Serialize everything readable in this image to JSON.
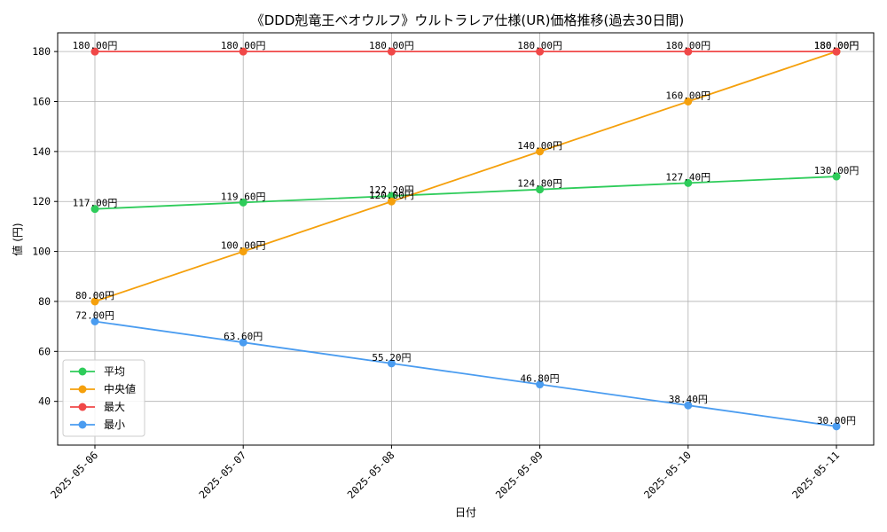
{
  "chart_data": {
    "type": "line",
    "title": "《DDD剋竜王ベオウルフ》ウルトラレア仕様(UR)価格推移(過去30日間)",
    "xlabel": "日付",
    "ylabel": "値 (円)",
    "categories": [
      "2025-05-06",
      "2025-05-07",
      "2025-05-08",
      "2025-05-09",
      "2025-05-10",
      "2025-05-11"
    ],
    "ylim": [
      22.5,
      187.5
    ],
    "yticks": [
      40,
      60,
      80,
      100,
      120,
      140,
      160,
      180
    ],
    "grid": true,
    "legend_position": "lower-left",
    "value_suffix": "円",
    "series": [
      {
        "name": "平均",
        "color": "#2ecc5a",
        "values": [
          117.0,
          119.6,
          122.2,
          124.8,
          127.4,
          130.0
        ]
      },
      {
        "name": "中央値",
        "color": "#f5a00c",
        "values": [
          80.0,
          100.0,
          120.0,
          140.0,
          160.0,
          180.0
        ]
      },
      {
        "name": "最大",
        "color": "#f04848",
        "values": [
          180.0,
          180.0,
          180.0,
          180.0,
          180.0,
          180.0
        ]
      },
      {
        "name": "最小",
        "color": "#4a9cf0",
        "values": [
          72.0,
          63.6,
          55.2,
          46.8,
          38.4,
          30.0
        ]
      }
    ]
  }
}
